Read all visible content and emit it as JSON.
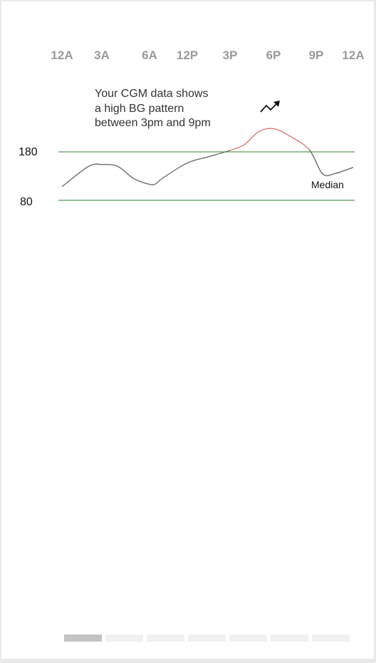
{
  "chart_data": {
    "type": "line",
    "x_ticks": [
      "12A",
      "3A",
      "6A",
      "12P",
      "3P",
      "6P",
      "9P",
      "12A"
    ],
    "y_ticks": [
      180,
      80
    ],
    "target_range": [
      80,
      180
    ],
    "series": [
      {
        "name": "Median",
        "x": [
          "12:00A",
          "2:00A",
          "3:00A",
          "4:00A",
          "5:00A",
          "6:00A",
          "7:00A",
          "8:00A",
          "12:00P",
          "1:30P",
          "3:00P",
          "4:00P",
          "5:00P",
          "6:00P",
          "7:00P",
          "8:30P",
          "9:30P",
          "10:30P",
          "12:00A"
        ],
        "y": [
          108,
          150,
          154,
          150,
          125,
          113,
          114,
          125,
          157,
          170,
          183,
          195,
          222,
          228,
          215,
          185,
          135,
          135,
          148
        ],
        "high_segment_color": "#e07a72",
        "normal_color": "#6e6e6e"
      }
    ],
    "range_line_color": "#5c9a5c",
    "grid": false
  },
  "callout": {
    "lines": [
      "Your CGM data shows",
      "a high BG pattern",
      "between 3pm and 9pm"
    ]
  },
  "trend_icon": "trending-up-icon",
  "pager": {
    "page_count": 7,
    "active_index": 0
  }
}
